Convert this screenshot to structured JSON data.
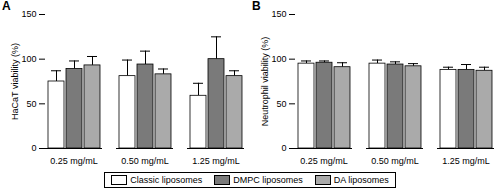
{
  "chart_data": [
    {
      "type": "bar",
      "title": "A",
      "y_label": "HaCaT viability (%)",
      "categories": [
        "0.25 mg/mL",
        "0.50 mg/mL",
        "1.25 mg/mL"
      ],
      "series": [
        {
          "name": "Classic liposomes",
          "color": "#ffffff",
          "values": [
            75,
            81,
            59
          ],
          "errors": [
            12,
            18,
            14
          ]
        },
        {
          "name": "DMPC liposomes",
          "color": "#7a7a7a",
          "values": [
            89,
            94,
            100
          ],
          "errors": [
            9,
            15,
            25
          ]
        },
        {
          "name": "DA liposomes",
          "color": "#aaaaaa",
          "values": [
            93,
            83,
            81
          ],
          "errors": [
            10,
            6,
            6
          ]
        }
      ],
      "ylim": [
        0,
        150
      ],
      "yticks": [
        0,
        50,
        100,
        150
      ]
    },
    {
      "type": "bar",
      "title": "B",
      "y_label": "Neutrophil viability (%)",
      "categories": [
        "0.25 mg/mL",
        "0.50 mg/mL",
        "1.25 mg/mL"
      ],
      "series": [
        {
          "name": "Classic liposomes",
          "color": "#ffffff",
          "values": [
            95,
            95,
            88
          ],
          "errors": [
            3,
            4,
            3
          ]
        },
        {
          "name": "DMPC liposomes",
          "color": "#7a7a7a",
          "values": [
            96,
            94,
            88
          ],
          "errors": [
            2,
            3,
            6
          ]
        },
        {
          "name": "DA liposomes",
          "color": "#aaaaaa",
          "values": [
            91,
            92,
            87
          ],
          "errors": [
            5,
            3,
            4
          ]
        }
      ],
      "ylim": [
        0,
        150
      ],
      "yticks": [
        0,
        50,
        100,
        150
      ]
    }
  ]
}
